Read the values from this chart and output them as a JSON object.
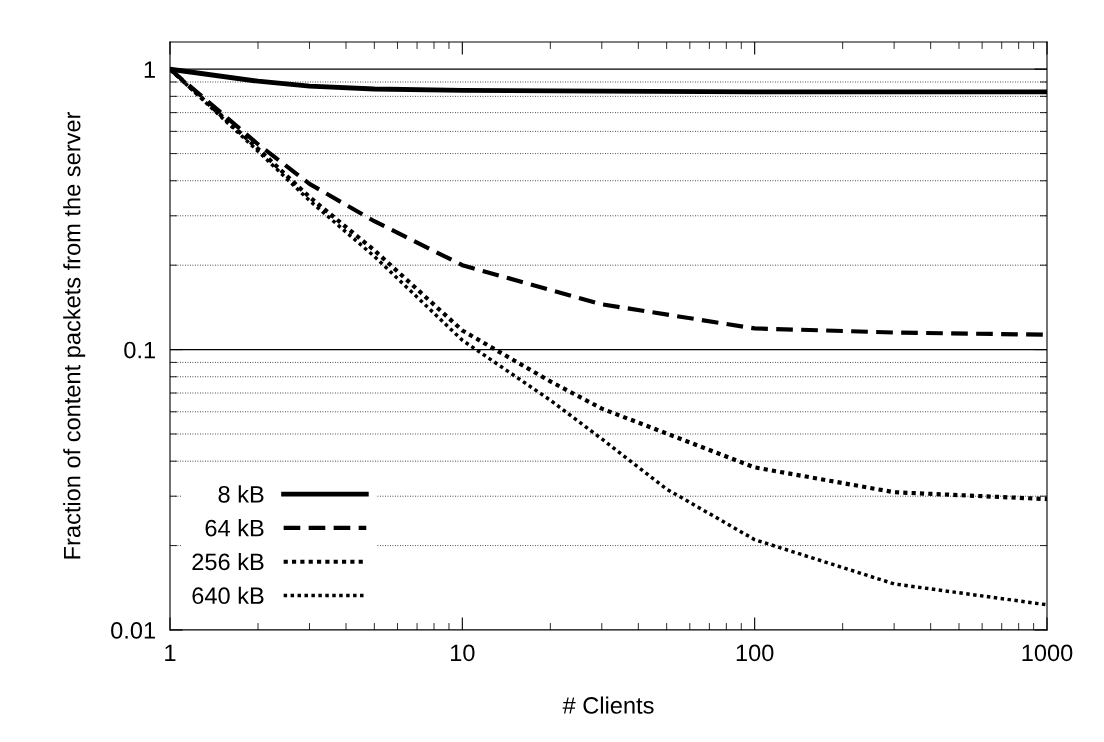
{
  "chart_data": {
    "type": "line",
    "xlabel": "# Clients",
    "ylabel": "Fraction of content packets from the server",
    "log": "xy",
    "xlim": [
      1,
      1000
    ],
    "ylim": [
      0.01,
      1.25
    ],
    "xticks": [
      1,
      10,
      100,
      1000
    ],
    "yticks": [
      0.01,
      0.1,
      1
    ],
    "grid": "y",
    "legend": "bottom left",
    "series": [
      {
        "name": "8 kB",
        "color": "#000000",
        "line_style": "solid",
        "x": [
          1,
          2,
          3,
          5,
          10,
          30,
          100,
          300,
          1000
        ],
        "values": [
          1,
          0.906,
          0.87,
          0.85,
          0.84,
          0.835,
          0.83,
          0.83,
          0.83
        ]
      },
      {
        "name": "64 kB",
        "color": "#000000",
        "line_style": "dashed",
        "x": [
          1,
          2,
          3,
          5,
          10,
          30,
          100,
          300,
          1000
        ],
        "values": [
          1,
          0.54,
          0.39,
          0.287,
          0.2,
          0.145,
          0.119,
          0.115,
          0.113
        ]
      },
      {
        "name": "256 kB",
        "color": "#000000",
        "line_style": "dotted",
        "x": [
          1,
          2,
          3,
          5,
          10,
          20,
          30,
          100,
          300,
          1000
        ],
        "values": [
          1,
          0.52,
          0.35,
          0.226,
          0.117,
          0.077,
          0.0616,
          0.038,
          0.031,
          0.0293
        ]
      },
      {
        "name": "640 kB",
        "color": "#000000",
        "line_style": "dotted",
        "x": [
          1,
          2,
          3,
          5,
          10,
          20,
          30,
          50,
          100,
          300,
          1000
        ],
        "values": [
          1,
          0.51,
          0.34,
          0.215,
          0.108,
          0.066,
          0.048,
          0.0318,
          0.021,
          0.0146,
          0.0123
        ]
      }
    ]
  }
}
